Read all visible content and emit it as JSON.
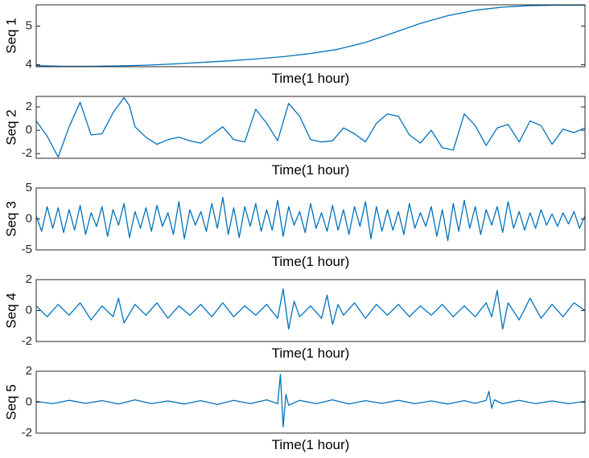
{
  "colors": {
    "series": "#0072BD",
    "axes": "#262626",
    "background": "#ffffff"
  },
  "chart_data": [
    {
      "type": "line",
      "ylabel": "Seq 1",
      "xlabel": "Time(1 hour)",
      "ylim": [
        3.95,
        5.55
      ],
      "yticks": [
        {
          "value": 4,
          "label": "4"
        },
        {
          "value": 5,
          "label": "5"
        }
      ],
      "xlim": [
        0,
        1
      ],
      "grid": false,
      "series": [
        {
          "x": [
            0,
            0.05,
            0.1,
            0.15,
            0.2,
            0.25,
            0.3,
            0.35,
            0.4,
            0.45,
            0.5,
            0.55,
            0.6,
            0.65,
            0.7,
            0.75,
            0.8,
            0.85,
            0.9,
            0.95,
            1.0
          ],
          "values": [
            3.98,
            3.96,
            3.96,
            3.97,
            3.99,
            4.02,
            4.06,
            4.1,
            4.15,
            4.21,
            4.29,
            4.4,
            4.58,
            4.82,
            5.07,
            5.27,
            5.41,
            5.49,
            5.53,
            5.54,
            5.54
          ]
        }
      ]
    },
    {
      "type": "line",
      "ylabel": "Seq 2",
      "xlabel": "Time(1 hour)",
      "ylim": [
        -2.4,
        2.9
      ],
      "yticks": [
        {
          "value": 2,
          "label": "2"
        },
        {
          "value": 0,
          "label": "0"
        },
        {
          "value": -2,
          "label": "-2"
        }
      ],
      "xlim": [
        0,
        1
      ],
      "grid": false,
      "series": [
        {
          "x": [
            0,
            0.02,
            0.04,
            0.06,
            0.08,
            0.1,
            0.12,
            0.14,
            0.16,
            0.17,
            0.18,
            0.2,
            0.22,
            0.24,
            0.26,
            0.28,
            0.3,
            0.32,
            0.34,
            0.36,
            0.38,
            0.4,
            0.42,
            0.44,
            0.46,
            0.48,
            0.5,
            0.52,
            0.54,
            0.56,
            0.58,
            0.6,
            0.62,
            0.64,
            0.66,
            0.68,
            0.7,
            0.72,
            0.74,
            0.76,
            0.78,
            0.8,
            0.82,
            0.84,
            0.86,
            0.88,
            0.9,
            0.92,
            0.94,
            0.96,
            0.98,
            1.0
          ],
          "values": [
            0.8,
            -0.5,
            -2.3,
            0.3,
            2.4,
            -0.4,
            -0.3,
            1.5,
            2.8,
            2.1,
            0.3,
            -0.6,
            -1.2,
            -0.8,
            -0.6,
            -0.9,
            -1.1,
            -0.4,
            0.3,
            -0.8,
            -1.0,
            1.8,
            0.6,
            -0.9,
            2.3,
            1.2,
            -0.8,
            -1.0,
            -0.9,
            0.2,
            -0.3,
            -1.0,
            0.6,
            1.4,
            1.2,
            -0.4,
            -1.1,
            0.0,
            -1.5,
            -1.7,
            1.4,
            0.4,
            -1.3,
            0.2,
            0.5,
            -1.0,
            0.8,
            0.4,
            -1.2,
            0.1,
            -0.2,
            0.2
          ]
        }
      ]
    },
    {
      "type": "line",
      "ylabel": "Seq 3",
      "xlabel": "Time(1 hour)",
      "ylim": [
        -5,
        5
      ],
      "yticks": [
        {
          "value": 5,
          "label": "5"
        },
        {
          "value": 0,
          "label": "0"
        },
        {
          "value": -5,
          "label": "-5"
        }
      ],
      "xlim": [
        0,
        1
      ],
      "grid": false,
      "series": [
        {
          "x": [
            0,
            0.01,
            0.02,
            0.03,
            0.04,
            0.05,
            0.06,
            0.07,
            0.08,
            0.09,
            0.1,
            0.11,
            0.12,
            0.13,
            0.14,
            0.15,
            0.16,
            0.17,
            0.18,
            0.19,
            0.2,
            0.21,
            0.22,
            0.23,
            0.24,
            0.25,
            0.26,
            0.27,
            0.28,
            0.29,
            0.3,
            0.31,
            0.32,
            0.33,
            0.34,
            0.35,
            0.36,
            0.37,
            0.38,
            0.39,
            0.4,
            0.41,
            0.42,
            0.43,
            0.44,
            0.45,
            0.46,
            0.47,
            0.48,
            0.49,
            0.5,
            0.51,
            0.52,
            0.53,
            0.54,
            0.55,
            0.56,
            0.57,
            0.58,
            0.59,
            0.6,
            0.61,
            0.62,
            0.63,
            0.64,
            0.65,
            0.66,
            0.67,
            0.68,
            0.69,
            0.7,
            0.71,
            0.72,
            0.73,
            0.74,
            0.75,
            0.76,
            0.77,
            0.78,
            0.79,
            0.8,
            0.81,
            0.82,
            0.83,
            0.84,
            0.85,
            0.86,
            0.87,
            0.88,
            0.89,
            0.9,
            0.91,
            0.92,
            0.93,
            0.94,
            0.95,
            0.96,
            0.97,
            0.98,
            0.99,
            1.0
          ],
          "values": [
            0.5,
            -2.0,
            2.0,
            -1.5,
            1.8,
            -2.2,
            1.5,
            -1.8,
            2.2,
            -2.5,
            1.0,
            -1.2,
            2.0,
            -2.8,
            1.5,
            -1.0,
            2.5,
            -3.0,
            1.2,
            -1.5,
            1.8,
            -2.0,
            2.2,
            -1.2,
            1.0,
            -2.5,
            2.8,
            -3.2,
            1.5,
            -1.0,
            1.2,
            -2.0,
            2.5,
            -1.5,
            3.5,
            -2.5,
            1.8,
            -3.0,
            2.0,
            -1.2,
            2.5,
            -2.0,
            1.5,
            -1.8,
            3.0,
            -2.8,
            2.0,
            -1.0,
            1.2,
            -2.2,
            2.5,
            -1.5,
            1.0,
            -2.0,
            2.2,
            -1.8,
            1.5,
            -2.5,
            2.0,
            -1.2,
            2.8,
            -3.2,
            2.0,
            -2.0,
            1.5,
            -1.8,
            1.2,
            -2.5,
            2.5,
            -1.5,
            1.0,
            -1.2,
            2.0,
            -2.8,
            1.5,
            -3.5,
            2.5,
            -2.0,
            3.0,
            -1.5,
            2.0,
            -2.5,
            1.5,
            -1.0,
            2.0,
            -2.2,
            2.8,
            -1.5,
            1.2,
            -1.8,
            1.0,
            -1.5,
            1.5,
            -1.0,
            0.8,
            -1.2,
            1.0,
            -0.8,
            1.2,
            -1.5,
            0.5
          ]
        }
      ]
    },
    {
      "type": "line",
      "ylabel": "Seq 4",
      "xlabel": "Time(1 hour)",
      "ylim": [
        -2,
        2
      ],
      "yticks": [
        {
          "value": 2,
          "label": "2"
        },
        {
          "value": 0,
          "label": "0"
        },
        {
          "value": -2,
          "label": "-2"
        }
      ],
      "xlim": [
        0,
        1
      ],
      "grid": false,
      "series": [
        {
          "x": [
            0,
            0.02,
            0.04,
            0.06,
            0.08,
            0.1,
            0.12,
            0.14,
            0.15,
            0.16,
            0.18,
            0.2,
            0.22,
            0.24,
            0.26,
            0.28,
            0.3,
            0.32,
            0.34,
            0.36,
            0.38,
            0.4,
            0.42,
            0.44,
            0.45,
            0.46,
            0.47,
            0.48,
            0.5,
            0.52,
            0.53,
            0.54,
            0.55,
            0.56,
            0.58,
            0.6,
            0.62,
            0.64,
            0.66,
            0.68,
            0.7,
            0.72,
            0.74,
            0.76,
            0.78,
            0.8,
            0.82,
            0.83,
            0.84,
            0.85,
            0.86,
            0.88,
            0.9,
            0.92,
            0.94,
            0.96,
            0.98,
            1.0
          ],
          "values": [
            0.3,
            -0.4,
            0.4,
            -0.3,
            0.5,
            -0.6,
            0.3,
            -0.4,
            0.8,
            -0.8,
            0.4,
            -0.3,
            0.5,
            -0.5,
            0.3,
            -0.3,
            0.4,
            -0.4,
            0.5,
            -0.4,
            0.3,
            -0.3,
            0.4,
            -0.5,
            1.4,
            -1.2,
            0.6,
            -0.4,
            0.3,
            -0.5,
            1.0,
            -0.9,
            0.4,
            -0.3,
            0.5,
            -0.5,
            0.4,
            -0.3,
            0.4,
            -0.4,
            0.3,
            -0.3,
            0.4,
            -0.4,
            0.3,
            -0.4,
            0.5,
            -0.4,
            1.3,
            -1.2,
            0.5,
            -0.6,
            0.8,
            -0.5,
            0.4,
            -0.4,
            0.5,
            0.0
          ]
        }
      ]
    },
    {
      "type": "line",
      "ylabel": "Seq 5",
      "xlabel": "Time(1 hour)",
      "ylim": [
        -2,
        2
      ],
      "yticks": [
        {
          "value": 2,
          "label": "2"
        },
        {
          "value": 0,
          "label": "0"
        },
        {
          "value": -2,
          "label": "-2"
        }
      ],
      "xlim": [
        0,
        1
      ],
      "grid": false,
      "series": [
        {
          "x": [
            0,
            0.03,
            0.06,
            0.09,
            0.12,
            0.15,
            0.18,
            0.21,
            0.24,
            0.27,
            0.3,
            0.33,
            0.36,
            0.39,
            0.42,
            0.44,
            0.445,
            0.45,
            0.455,
            0.46,
            0.48,
            0.51,
            0.54,
            0.57,
            0.6,
            0.63,
            0.66,
            0.69,
            0.72,
            0.75,
            0.78,
            0.8,
            0.82,
            0.825,
            0.83,
            0.835,
            0.85,
            0.88,
            0.91,
            0.94,
            0.97,
            1.0
          ],
          "values": [
            0.05,
            -0.1,
            0.12,
            -0.08,
            0.1,
            -0.12,
            0.15,
            -0.1,
            0.08,
            -0.12,
            0.1,
            -0.15,
            0.12,
            -0.1,
            0.15,
            -0.1,
            1.8,
            -1.6,
            0.5,
            -0.2,
            0.12,
            -0.1,
            0.15,
            -0.12,
            0.1,
            -0.08,
            0.12,
            -0.1,
            0.08,
            -0.12,
            0.1,
            -0.08,
            0.12,
            0.7,
            -0.4,
            0.15,
            -0.1,
            0.12,
            -0.1,
            0.08,
            -0.1,
            0.05
          ]
        }
      ]
    }
  ]
}
